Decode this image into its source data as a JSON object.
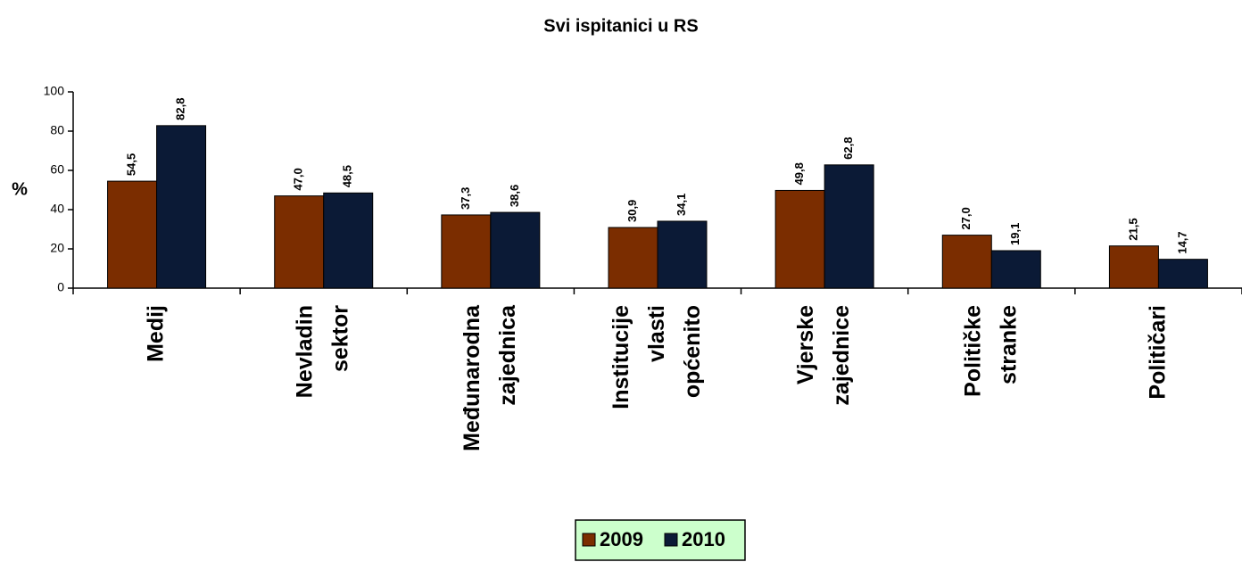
{
  "chart_data": {
    "type": "bar",
    "title": "Svi ispitanici u RS",
    "ylabel": "%",
    "categories": [
      "Medij",
      "Nevladin sektor",
      "Međunarodna zajednica",
      "Institucije vlasti općenito",
      "Vjerske zajednice",
      "Političke stranke",
      "Političari"
    ],
    "series": [
      {
        "name": "2009",
        "color": "#7b2d00",
        "values": [
          54.5,
          47.0,
          37.3,
          30.9,
          49.8,
          27.0,
          21.5
        ],
        "value_labels": [
          "54,5",
          "47,0",
          "37,3",
          "30,9",
          "49,8",
          "27,0",
          "21,5"
        ]
      },
      {
        "name": "2010",
        "color": "#0b1a36",
        "values": [
          82.8,
          48.5,
          38.6,
          34.1,
          62.8,
          19.1,
          14.7
        ],
        "value_labels": [
          "82,8",
          "48,5",
          "38,6",
          "34,1",
          "62,8",
          "19,1",
          "14,7"
        ]
      }
    ],
    "ylim": [
      0,
      100
    ],
    "yticks": [
      0,
      20,
      40,
      60,
      80,
      100
    ],
    "grid": false,
    "legend": "bottom"
  }
}
